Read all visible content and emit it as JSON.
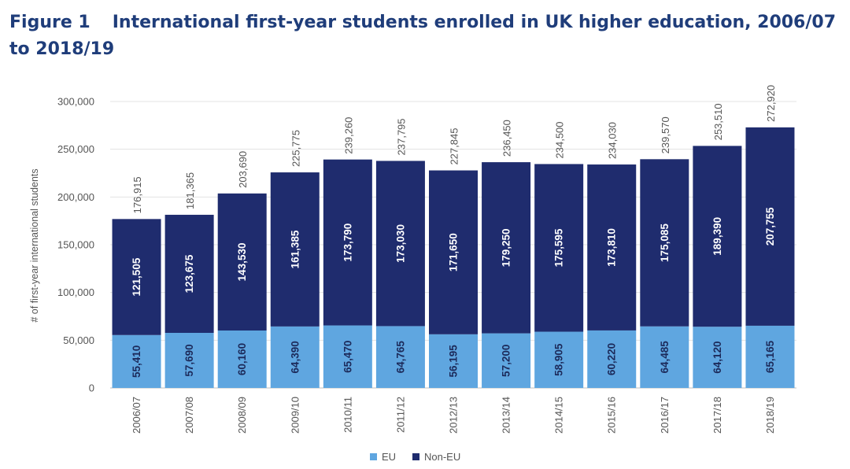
{
  "figure": {
    "label": "Figure 1",
    "title": "International first-year students enrolled in UK higher education, 2006/07 to 2018/19"
  },
  "chart_data": {
    "type": "bar",
    "stacked": true,
    "ylabel": "# of first-year international students",
    "xlabel": "",
    "ylim": [
      0,
      300000
    ],
    "yticks": [
      0,
      50000,
      100000,
      150000,
      200000,
      250000,
      300000
    ],
    "ytick_labels": [
      "0",
      "50,000",
      "100,000",
      "150,000",
      "200,000",
      "250,000",
      "300,000"
    ],
    "grid": true,
    "legend_position": "bottom",
    "categories": [
      "2006/07",
      "2007/08",
      "2008/09",
      "2009/10",
      "2010/11",
      "2011/12",
      "2012/13",
      "2013/14",
      "2014/15",
      "2015/16",
      "2016/17",
      "2017/18",
      "2018/19"
    ],
    "series": [
      {
        "name": "EU",
        "color": "#5fa6e0",
        "label_color": "#1c2a5a",
        "values": [
          55410,
          57690,
          60160,
          64390,
          65470,
          64765,
          56195,
          57200,
          58905,
          60220,
          64485,
          64120,
          65165
        ],
        "labels": [
          "55,410",
          "57,690",
          "60,160",
          "64,390",
          "65,470",
          "64,765",
          "56,195",
          "57,200",
          "58,905",
          "60,220",
          "64,485",
          "64,120",
          "65,165"
        ]
      },
      {
        "name": "Non-EU",
        "color": "#1f2c6e",
        "label_color": "#ffffff",
        "values": [
          121505,
          123675,
          143530,
          161385,
          173790,
          173030,
          171650,
          179250,
          175595,
          173810,
          175085,
          189390,
          207755
        ],
        "labels": [
          "121,505",
          "123,675",
          "143,530",
          "161,385",
          "173,790",
          "173,030",
          "171,650",
          "179,250",
          "175,595",
          "173,810",
          "175,085",
          "189,390",
          "207,755"
        ]
      }
    ],
    "totals": [
      176915,
      181365,
      203690,
      225775,
      239260,
      237795,
      227845,
      236450,
      234500,
      234030,
      239570,
      253510,
      272920
    ],
    "total_labels": [
      "176,915",
      "181,365",
      "203,690",
      "225,775",
      "239,260",
      "237,795",
      "227,845",
      "236,450",
      "234,500",
      "234,030",
      "239,570",
      "253,510",
      "272,920"
    ]
  }
}
